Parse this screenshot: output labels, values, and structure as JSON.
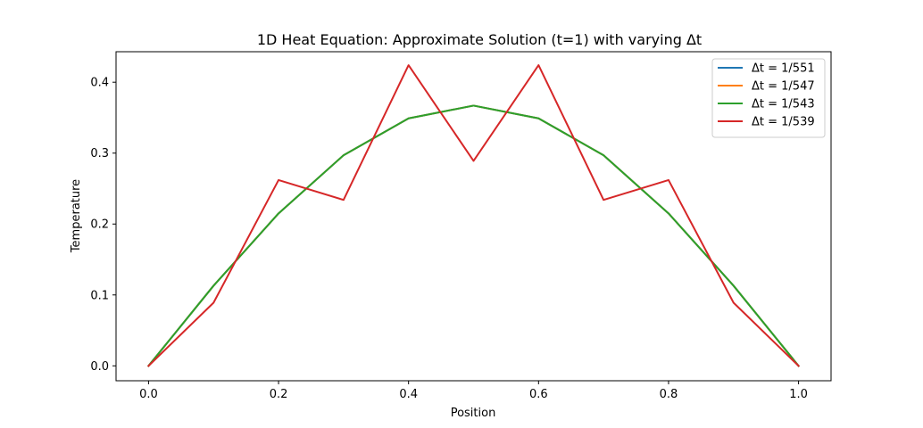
{
  "chart_data": {
    "type": "line",
    "title": "1D Heat Equation: Approximate Solution (t=1) with varying Δt",
    "xlabel": "Position",
    "ylabel": "Temperature",
    "xlim": [
      -0.05,
      1.05
    ],
    "ylim": [
      -0.021,
      0.443
    ],
    "xticks": [
      0.0,
      0.2,
      0.4,
      0.6,
      0.8,
      1.0
    ],
    "xtick_labels": [
      "0.0",
      "0.2",
      "0.4",
      "0.6",
      "0.8",
      "1.0"
    ],
    "yticks": [
      0.0,
      0.1,
      0.2,
      0.3,
      0.4
    ],
    "ytick_labels": [
      "0.0",
      "0.1",
      "0.2",
      "0.3",
      "0.4"
    ],
    "grid": false,
    "legend_position": "top-right",
    "x": [
      0.0,
      0.1,
      0.2,
      0.3,
      0.4,
      0.5,
      0.6,
      0.7,
      0.8,
      0.9,
      1.0
    ],
    "series": [
      {
        "name": "Δt = 1/551",
        "color": "#1f77b4",
        "values": [
          0.0,
          0.113,
          0.215,
          0.297,
          0.349,
          0.367,
          0.349,
          0.297,
          0.215,
          0.113,
          0.0
        ]
      },
      {
        "name": "Δt = 1/547",
        "color": "#ff7f0e",
        "values": [
          0.0,
          0.113,
          0.215,
          0.297,
          0.349,
          0.367,
          0.349,
          0.297,
          0.215,
          0.113,
          0.0
        ]
      },
      {
        "name": "Δt = 1/543",
        "color": "#2ca02c",
        "values": [
          0.0,
          0.113,
          0.215,
          0.297,
          0.349,
          0.367,
          0.349,
          0.297,
          0.215,
          0.113,
          0.0
        ]
      },
      {
        "name": "Δt = 1/539",
        "color": "#d62728",
        "values": [
          0.0,
          0.089,
          0.262,
          0.234,
          0.424,
          0.289,
          0.424,
          0.234,
          0.262,
          0.089,
          0.0
        ]
      }
    ]
  }
}
